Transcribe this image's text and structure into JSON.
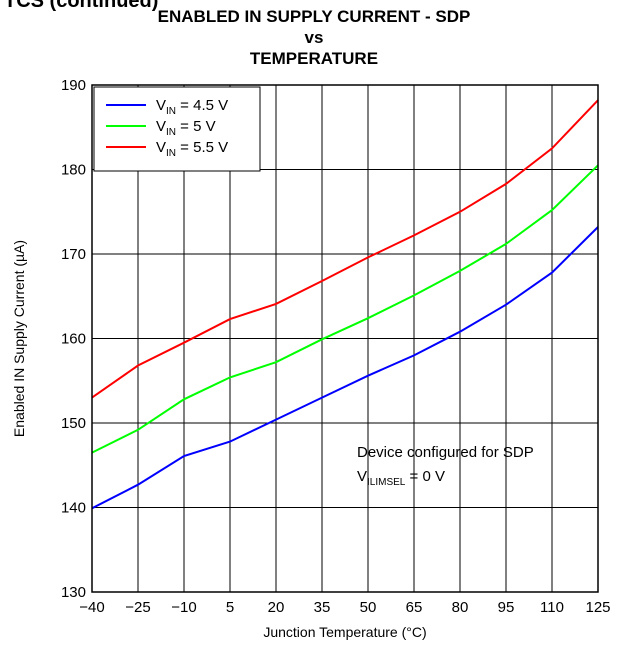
{
  "page": {
    "cut_heading": "TCS (continued)"
  },
  "chart_data": {
    "type": "line",
    "title": [
      "ENABLED IN SUPPLY CURRENT - SDP",
      "vs",
      "TEMPERATURE"
    ],
    "xlabel": "Junction Temperature (°C)",
    "ylabel": "Enabled IN Supply Current (µA)",
    "x": [
      -40,
      -25,
      -10,
      5,
      20,
      35,
      50,
      65,
      80,
      95,
      110,
      125
    ],
    "x_tick_labels": [
      "−40",
      "−25",
      "−10",
      "5",
      "20",
      "35",
      "50",
      "65",
      "80",
      "95",
      "110",
      "125"
    ],
    "xlim": [
      -40,
      125
    ],
    "ylim": [
      130,
      190
    ],
    "y_ticks": [
      130,
      140,
      150,
      160,
      170,
      180,
      190
    ],
    "grid": true,
    "legend_position": "top-left",
    "series": [
      {
        "name": "V_IN = 4.5 V",
        "legend_main": "V",
        "legend_sub": "IN",
        "legend_rest": " = 4.5 V",
        "color": "#0000ff",
        "values": [
          139.9,
          142.7,
          146.1,
          147.8,
          150.4,
          153.0,
          155.6,
          158.0,
          160.8,
          164.0,
          167.8,
          173.2
        ]
      },
      {
        "name": "V_IN = 5 V",
        "legend_main": "V",
        "legend_sub": "IN",
        "legend_rest": " = 5 V",
        "color": "#00ff00",
        "values": [
          146.5,
          149.2,
          152.8,
          155.4,
          157.2,
          159.9,
          162.4,
          165.1,
          168.0,
          171.2,
          175.2,
          180.5
        ]
      },
      {
        "name": "V_IN = 5.5 V",
        "legend_main": "V",
        "legend_sub": "IN",
        "legend_rest": " = 5.5 V",
        "color": "#ff0000",
        "values": [
          153.0,
          156.8,
          159.5,
          162.3,
          164.1,
          166.8,
          169.6,
          172.2,
          175.0,
          178.3,
          182.5,
          188.2
        ]
      }
    ],
    "annotation": {
      "line1": "Device configured for SDP",
      "line2_main": "V",
      "line2_sub": "ILIMSEL",
      "line2_rest": " = 0 V"
    }
  }
}
